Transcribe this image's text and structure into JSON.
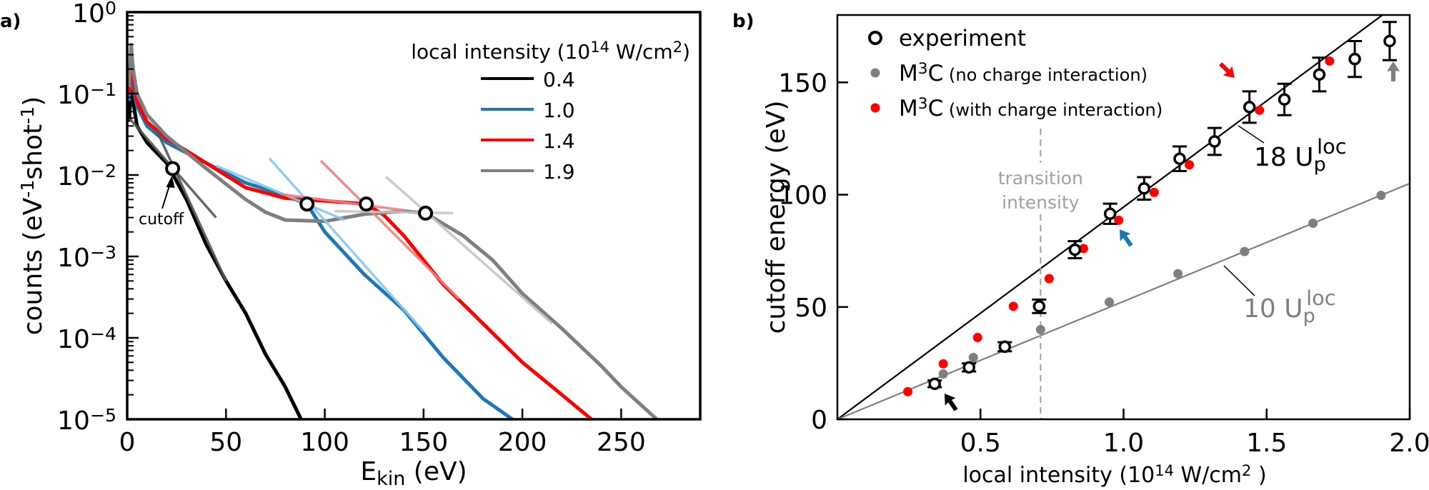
{
  "panel_labels": {
    "a": "a)",
    "b": "b)"
  },
  "colors": {
    "black": "#000000",
    "blue": "#1f77b4",
    "red": "#ff0000",
    "gray": "#7f7f7f",
    "fit_black": "#555555",
    "fit_blue": "#86c8f2",
    "fit_red": "#f08080",
    "fit_gray": "#c4c4c4",
    "guide": "#a0a0a0"
  },
  "chart_data": [
    {
      "type": "line",
      "xlabel": [
        {
          "t": "E"
        },
        {
          "t": "kin",
          "s": "sub"
        },
        {
          "t": " (eV)"
        }
      ],
      "ylabel": [
        {
          "t": "counts (eV"
        },
        {
          "t": "-1",
          "s": "sup"
        },
        {
          "t": "shot"
        },
        {
          "t": "-1",
          "s": "sup"
        },
        {
          "t": ")"
        }
      ],
      "xlim": [
        0,
        290
      ],
      "ylim": [
        1e-05,
        1
      ],
      "yscale": "log",
      "xticks": [
        0,
        50,
        100,
        150,
        200,
        250
      ],
      "yticks": [
        {
          "value": 1,
          "base": "10",
          "exp": "0"
        },
        {
          "value": 0.1,
          "base": "10",
          "exp": "−1"
        },
        {
          "value": 0.01,
          "base": "10",
          "exp": "−2"
        },
        {
          "value": 0.001,
          "base": "10",
          "exp": "−3"
        },
        {
          "value": 0.0001,
          "base": "10",
          "exp": "−4"
        },
        {
          "value": 1e-05,
          "base": "10",
          "exp": "−5"
        }
      ],
      "grid": false,
      "legend": {
        "placement": "top-right",
        "title": [
          {
            "t": "local intensity (10"
          },
          {
            "t": "14",
            "s": "sup"
          },
          {
            "t": " W/cm"
          },
          {
            "t": "2",
            "s": "sup"
          },
          {
            "t": ")"
          }
        ]
      },
      "series": [
        {
          "name": "0.4",
          "color": "#000000",
          "points": [
            [
              1,
              0.045
            ],
            [
              2,
              0.16
            ],
            [
              3,
              0.08
            ],
            [
              5,
              0.04
            ],
            [
              10,
              0.025
            ],
            [
              20,
              0.014
            ],
            [
              30,
              0.005
            ],
            [
              40,
              0.0014
            ],
            [
              50,
              0.0005
            ],
            [
              60,
              0.0002
            ],
            [
              70,
              6.3e-05
            ],
            [
              80,
              2.5e-05
            ],
            [
              88,
              1e-05
            ]
          ]
        },
        {
          "name": "1.0",
          "color": "#1f77b4",
          "points": [
            [
              1,
              0.08
            ],
            [
              2,
              0.25
            ],
            [
              3,
              0.12
            ],
            [
              5,
              0.07
            ],
            [
              10,
              0.04
            ],
            [
              20,
              0.025
            ],
            [
              40,
              0.014
            ],
            [
              60,
              0.008
            ],
            [
              80,
              0.0056
            ],
            [
              91,
              0.0044
            ],
            [
              100,
              0.002
            ],
            [
              120,
              0.0006
            ],
            [
              140,
              0.00022
            ],
            [
              160,
              5.7e-05
            ],
            [
              180,
              1.8e-05
            ],
            [
              195,
              1e-05
            ]
          ]
        },
        {
          "name": "1.4",
          "color": "#ff0000",
          "points": [
            [
              1,
              0.1
            ],
            [
              2,
              0.3
            ],
            [
              3,
              0.15
            ],
            [
              5,
              0.08
            ],
            [
              10,
              0.045
            ],
            [
              20,
              0.028
            ],
            [
              40,
              0.014
            ],
            [
              60,
              0.007
            ],
            [
              80,
              0.0052
            ],
            [
              100,
              0.0048
            ],
            [
              121,
              0.0044
            ],
            [
              130,
              0.0032
            ],
            [
              140,
              0.0018
            ],
            [
              160,
              0.00045
            ],
            [
              180,
              0.00015
            ],
            [
              200,
              5e-05
            ],
            [
              220,
              2e-05
            ],
            [
              235,
              1e-05
            ]
          ]
        },
        {
          "name": "1.9",
          "color": "#7f7f7f",
          "points": [
            [
              1,
              0.12
            ],
            [
              2,
              0.4
            ],
            [
              3,
              0.2
            ],
            [
              5,
              0.1
            ],
            [
              10,
              0.055
            ],
            [
              20,
              0.03
            ],
            [
              40,
              0.012
            ],
            [
              60,
              0.005
            ],
            [
              70,
              0.0035
            ],
            [
              80,
              0.0028
            ],
            [
              100,
              0.0027
            ],
            [
              120,
              0.0033
            ],
            [
              140,
              0.0036
            ],
            [
              151,
              0.0034
            ],
            [
              170,
              0.0018
            ],
            [
              185,
              0.0009
            ],
            [
              200,
              0.00035
            ],
            [
              220,
              0.00013
            ],
            [
              240,
              4.5e-05
            ],
            [
              250,
              2.5e-05
            ],
            [
              268,
              1e-05
            ]
          ]
        }
      ],
      "fit_lines": [
        {
          "color": "#555555",
          "points": [
            [
              1,
              0.05
            ],
            [
              45,
              0.003
            ]
          ]
        },
        {
          "color": "#555555",
          "points": [
            [
              15,
              0.035
            ],
            [
              50,
              0.0005
            ]
          ]
        },
        {
          "color": "#86c8f2",
          "points": [
            [
              45,
              0.013
            ],
            [
              110,
              0.0028
            ]
          ]
        },
        {
          "color": "#86c8f2",
          "points": [
            [
              72,
              0.016
            ],
            [
              150,
              0.00012
            ]
          ]
        },
        {
          "color": "#f08080",
          "points": [
            [
              78,
              0.0058
            ],
            [
              140,
              0.0037
            ]
          ]
        },
        {
          "color": "#f08080",
          "points": [
            [
              98,
              0.015
            ],
            [
              168,
              0.0003
            ]
          ]
        },
        {
          "color": "#c4c4c4",
          "points": [
            [
              105,
              0.0036
            ],
            [
              165,
              0.0034
            ]
          ]
        },
        {
          "color": "#c4c4c4",
          "points": [
            [
              131,
              0.0095
            ],
            [
              215,
              0.00015
            ]
          ]
        }
      ],
      "cutoff_points": [
        [
          23,
          0.012
        ],
        [
          91,
          0.0044
        ],
        [
          121,
          0.0044
        ],
        [
          151,
          0.0034
        ]
      ],
      "annotation": "cutoff"
    },
    {
      "type": "scatter",
      "xlabel": [
        {
          "t": "local intensity (10"
        },
        {
          "t": "14",
          "s": "sup"
        },
        {
          "t": " W/cm"
        },
        {
          "t": "2",
          "s": "sup"
        },
        {
          "t": " )"
        }
      ],
      "ylabel": [
        {
          "t": "cutoff energy (eV)"
        }
      ],
      "xlim": [
        0,
        2.0
      ],
      "ylim": [
        0,
        180
      ],
      "xticks": [
        "0.5",
        "1.0",
        "1.5",
        "2.0"
      ],
      "yticks": [
        0,
        50,
        100,
        150
      ],
      "grid": false,
      "legend": {
        "placement": "top-left"
      },
      "series": [
        {
          "name": [
            {
              "t": "experiment"
            }
          ],
          "color": "#000000",
          "marker": "open-circle",
          "points": [
            [
              0.34,
              15.8,
              1.5
            ],
            [
              0.46,
              23.1,
              1.8
            ],
            [
              0.585,
              32.3,
              2
            ],
            [
              0.705,
              50.3,
              3
            ],
            [
              0.83,
              75.5,
              3.8
            ],
            [
              0.953,
              91.5,
              4.5
            ],
            [
              1.072,
              102.8,
              5
            ],
            [
              1.196,
              116,
              5.5
            ],
            [
              1.318,
              123.7,
              6
            ],
            [
              1.44,
              139,
              7
            ],
            [
              1.562,
              142.4,
              7
            ],
            [
              1.684,
              153.5,
              7.5
            ],
            [
              1.808,
              160.4,
              8
            ],
            [
              1.93,
              168.4,
              8.5
            ]
          ]
        },
        {
          "name": [
            {
              "t": "M"
            },
            {
              "t": "3",
              "s": "sup"
            },
            {
              "t": "C"
            },
            {
              "t": " (no charge interaction)",
              "s": "small"
            }
          ],
          "color": "#7f7f7f",
          "marker": "dot",
          "points": [
            [
              0.37,
              20.2
            ],
            [
              0.475,
              27.5
            ],
            [
              0.71,
              39.9
            ],
            [
              0.95,
              52.2
            ],
            [
              1.19,
              64.8
            ],
            [
              1.423,
              74.7
            ],
            [
              1.662,
              87.3
            ],
            [
              1.9,
              99.7
            ]
          ]
        },
        {
          "name": [
            {
              "t": "M"
            },
            {
              "t": "3",
              "s": "sup"
            },
            {
              "t": "C"
            },
            {
              "t": " (with charge interaction)",
              "s": "small"
            }
          ],
          "color": "#ff0000",
          "marker": "dot",
          "points": [
            [
              0.246,
              12.3
            ],
            [
              0.37,
              24.7
            ],
            [
              0.49,
              36.4
            ],
            [
              0.615,
              50.3
            ],
            [
              0.74,
              62.6
            ],
            [
              0.86,
              76
            ],
            [
              0.983,
              88.6
            ],
            [
              1.107,
              101
            ],
            [
              1.23,
              113.3
            ],
            [
              1.475,
              137.6
            ],
            [
              1.72,
              159.5
            ]
          ]
        }
      ],
      "reference_lines": [
        {
          "slope": 94.5,
          "color": "#000000",
          "label": [
            {
              "t": "18 U"
            },
            {
              "t": "p",
              "s": "sub"
            },
            {
              "t": "loc",
              "s": "sup2"
            }
          ]
        },
        {
          "slope": 52.5,
          "color": "#7f7f7f",
          "label": [
            {
              "t": "10 U"
            },
            {
              "t": "p",
              "s": "sub"
            },
            {
              "t": "loc",
              "s": "sup2"
            }
          ]
        }
      ],
      "transition": {
        "x": 0.71,
        "label_lines": [
          "transition",
          "intensity"
        ]
      },
      "arrows": [
        {
          "color": "#000000",
          "target": 0.34,
          "direction": "up-left"
        },
        {
          "color": "#1f77b4",
          "target": 0.953,
          "direction": "up-left"
        },
        {
          "color": "#ff0000",
          "target": 1.44,
          "direction": "down-right"
        },
        {
          "color": "#7f7f7f",
          "target": 1.93,
          "direction": "up"
        }
      ]
    }
  ]
}
